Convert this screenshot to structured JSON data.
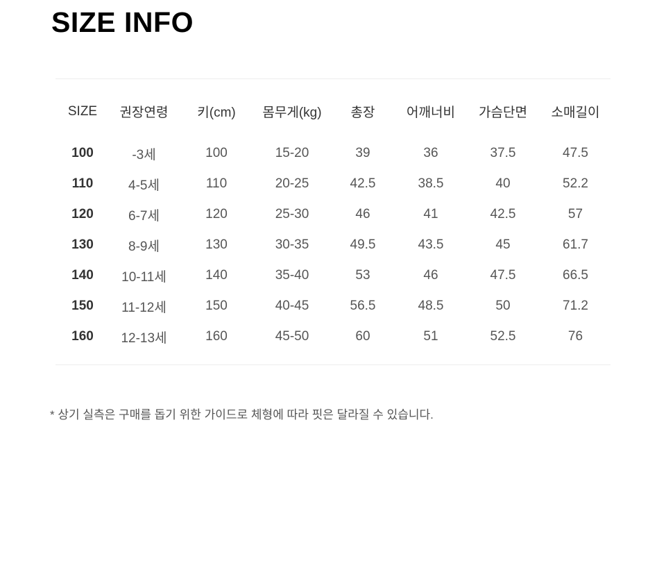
{
  "page": {
    "title": "SIZE INFO",
    "footnote": "* 상기 실측은 구매를 돕기 위한 가이드로 체형에 따라 핏은 달라질 수 있습니다."
  },
  "colors": {
    "background": "#ffffff",
    "title_text": "#000000",
    "header_text": "#333333",
    "cell_text": "#555555",
    "size_column_text": "#333333",
    "divider": "#ededed"
  },
  "size_table": {
    "columns": [
      "SIZE",
      "권장연령",
      "키(cm)",
      "몸무게(kg)",
      "총장",
      "어깨너비",
      "가슴단면",
      "소매길이"
    ],
    "rows": [
      [
        "100",
        "-3세",
        "100",
        "15-20",
        "39",
        "36",
        "37.5",
        "47.5"
      ],
      [
        "110",
        "4-5세",
        "110",
        "20-25",
        "42.5",
        "38.5",
        "40",
        "52.2"
      ],
      [
        "120",
        "6-7세",
        "120",
        "25-30",
        "46",
        "41",
        "42.5",
        "57"
      ],
      [
        "130",
        "8-9세",
        "130",
        "30-35",
        "49.5",
        "43.5",
        "45",
        "61.7"
      ],
      [
        "140",
        "10-11세",
        "140",
        "35-40",
        "53",
        "46",
        "47.5",
        "66.5"
      ],
      [
        "150",
        "11-12세",
        "150",
        "40-45",
        "56.5",
        "48.5",
        "50",
        "71.2"
      ],
      [
        "160",
        "12-13세",
        "160",
        "45-50",
        "60",
        "51",
        "52.5",
        "76"
      ]
    ]
  }
}
